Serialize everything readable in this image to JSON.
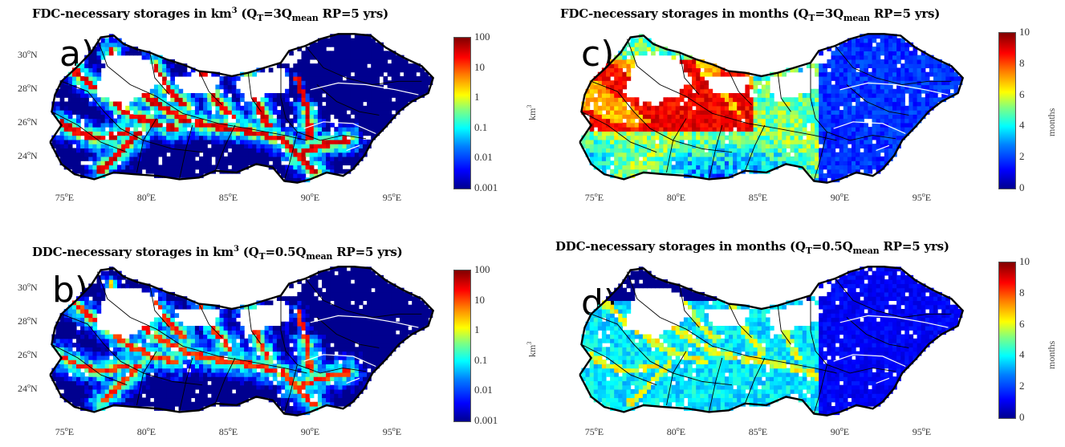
{
  "panels": [
    {
      "id": "a",
      "letter": "a)",
      "title_parts": {
        "lead": "FDC-necessary storages in km",
        "pow": "3",
        "open": " (Q",
        "sub1": "T",
        "mid": "=3Q",
        "sub2": "mean",
        "tail": " RP=5 yrs)"
      },
      "colorbar": {
        "scale": "log",
        "ticks": [
          "100",
          "10",
          "1",
          "0.1",
          "0.01",
          "0.001"
        ],
        "label": ""
      }
    },
    {
      "id": "b",
      "letter": "b)",
      "title_parts": {
        "lead": "DDC-necessary storages in km",
        "pow": "3",
        "open": " (Q",
        "sub1": "T",
        "mid": "=0.5Q",
        "sub2": "mean",
        "tail": " RP=5 yrs)"
      },
      "colorbar": {
        "scale": "log",
        "ticks": [
          "100",
          "10",
          "1",
          "0.1",
          "0.01",
          "0.001"
        ],
        "label": ""
      }
    },
    {
      "id": "c",
      "letter": "c)",
      "title_parts": {
        "lead": "FDC-necessary storages in months",
        "pow": "",
        "open": " (Q",
        "sub1": "T",
        "mid": "=3Q",
        "sub2": "mean",
        "tail": " RP=5 yrs)"
      },
      "colorbar": {
        "scale": "linear",
        "ticks": [
          "10",
          "8",
          "6",
          "4",
          "2",
          "0"
        ],
        "label": "months"
      },
      "yaxis_label": "km3"
    },
    {
      "id": "d",
      "letter": "d)",
      "title_parts": {
        "lead": "DDC-necessary storages in months",
        "pow": "",
        "open": " (Q",
        "sub1": "T",
        "mid": "=0.5Q",
        "sub2": "mean",
        "tail": " RP=5 yrs)"
      },
      "colorbar": {
        "scale": "linear",
        "ticks": [
          "10",
          "8",
          "6",
          "4",
          "2",
          "0"
        ],
        "label": "months"
      },
      "yaxis_label": "km3"
    }
  ],
  "axes": {
    "x_ticks": [
      "75",
      "80",
      "85",
      "90",
      "95"
    ],
    "x_suffix": "E",
    "y_ticks": [
      "30",
      "28",
      "26",
      "24"
    ],
    "y_suffix": "N",
    "degree": "o"
  },
  "colors": {
    "scale": [
      "#00008f",
      "#0000ff",
      "#0080ff",
      "#00ffff",
      "#80ff80",
      "#ffff00",
      "#ff8000",
      "#ff0000",
      "#800000"
    ],
    "boundary": "#000000",
    "grid": "#e6e6e6"
  }
}
